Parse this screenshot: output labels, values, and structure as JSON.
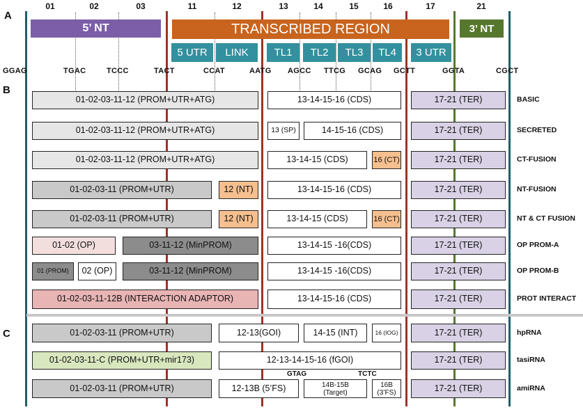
{
  "sections": {
    "a": "A",
    "b": "B",
    "c": "C"
  },
  "positions": [
    "01",
    "02",
    "03",
    "11",
    "12",
    "13",
    "14",
    "15",
    "16",
    "17",
    "21"
  ],
  "header": {
    "five_nt": "5’ NT",
    "transcribed": "TRANSCRIBED REGION",
    "three_nt": "3’ NT",
    "sub": [
      "5 UTR",
      "LINK",
      "TL1",
      "TL2",
      "TL3",
      "TL4",
      "3 UTR"
    ]
  },
  "overhangs": [
    "GGAG",
    "TGAC",
    "TCCC",
    "TACT",
    "CCAT",
    "AATG",
    "AGCC",
    "TTCG",
    "GCAG",
    "GCTT",
    "GGTA",
    "CGCT"
  ],
  "colors": {
    "purple": "#7b5ea7",
    "orange": "#c8641e",
    "green": "#56782e",
    "teal": "#33909e",
    "line_dark": "#1f5e68",
    "line_red": "#9a3528",
    "line_green": "#56782e",
    "box_light": "#e6e6e6",
    "box_mid": "#c9c9c9",
    "box_dark": "#8c8c8c",
    "box_ter": "#d9d2e6",
    "box_orange": "#f6bf8f",
    "box_pink": "#f3dede",
    "box_rose": "#e8b4b4",
    "box_green": "#d9e7bf"
  },
  "rows_b": [
    {
      "label": "BASIC",
      "boxes": [
        "01-02-03-11-12 (PROM+UTR+ATG)",
        "13-14-15-16 (CDS)",
        "17-21 (TER)"
      ]
    },
    {
      "label": "SECRETED",
      "boxes": [
        "01-02-03-11-12 (PROM+UTR+ATG)",
        "13 (SP)",
        "14-15-16 (CDS)",
        "17-21 (TER)"
      ]
    },
    {
      "label": "CT-FUSION",
      "boxes": [
        "01-02-03-11-12 (PROM+UTR+ATG)",
        "13-14-15 (CDS)",
        "16 (CT)",
        "17-21 (TER)"
      ]
    },
    {
      "label": "NT-FUSION",
      "boxes": [
        "01-02-03-11 (PROM+UTR)",
        "12 (NT)",
        "13-14-15-16 (CDS)",
        "17-21 (TER)"
      ]
    },
    {
      "label": "NT & CT FUSION",
      "boxes": [
        "01-02-03-11 (PROM+UTR)",
        "12 (NT)",
        "13-14-15 (CDS)",
        "16 (CT)",
        "17-21 (TER)"
      ]
    },
    {
      "label": "OP PROM-A",
      "boxes": [
        "01-02 (OP)",
        "03-11-12 (MinPROM)",
        "13-14-15 -16(CDS)",
        "17-21 (TER)"
      ]
    },
    {
      "label": "OP PROM-B",
      "boxes": [
        "01 (PROM)",
        "02 (OP)",
        "03-11-12 (MinPROM)",
        "13-14-15 -16(CDS)",
        "17-21 (TER)"
      ]
    },
    {
      "label": "PROT INTERACT",
      "boxes": [
        "01-02-03-11-12B (INTERACTION ADAPTOR)",
        "13-14-15-16 (CDS)",
        "17-21 (TER)"
      ]
    }
  ],
  "rows_c": [
    {
      "label": "hpRNA",
      "boxes": [
        "01-02-03-11 (PROM+UTR)",
        "12-13(GOI)",
        "14-15 (INT)",
        "16 (IOG)",
        "17-21 (TER)"
      ]
    },
    {
      "label": "tasiRNA",
      "boxes": [
        "01-02-03-11-C (PROM+UTR+mir173)",
        "12-13-14-15-16 (fGOI)",
        "17-21 (TER)"
      ]
    },
    {
      "label": "amiRNA",
      "boxes": [
        "01-02-03-11 (PROM+UTR)",
        "12-13B (5’FS)",
        "14B-15B",
        "(Target)",
        "16B",
        "(3’FS)",
        "17-21 (TER)"
      ]
    }
  ],
  "notes": {
    "gtag": "GTAG",
    "tctc": "TCTC"
  }
}
